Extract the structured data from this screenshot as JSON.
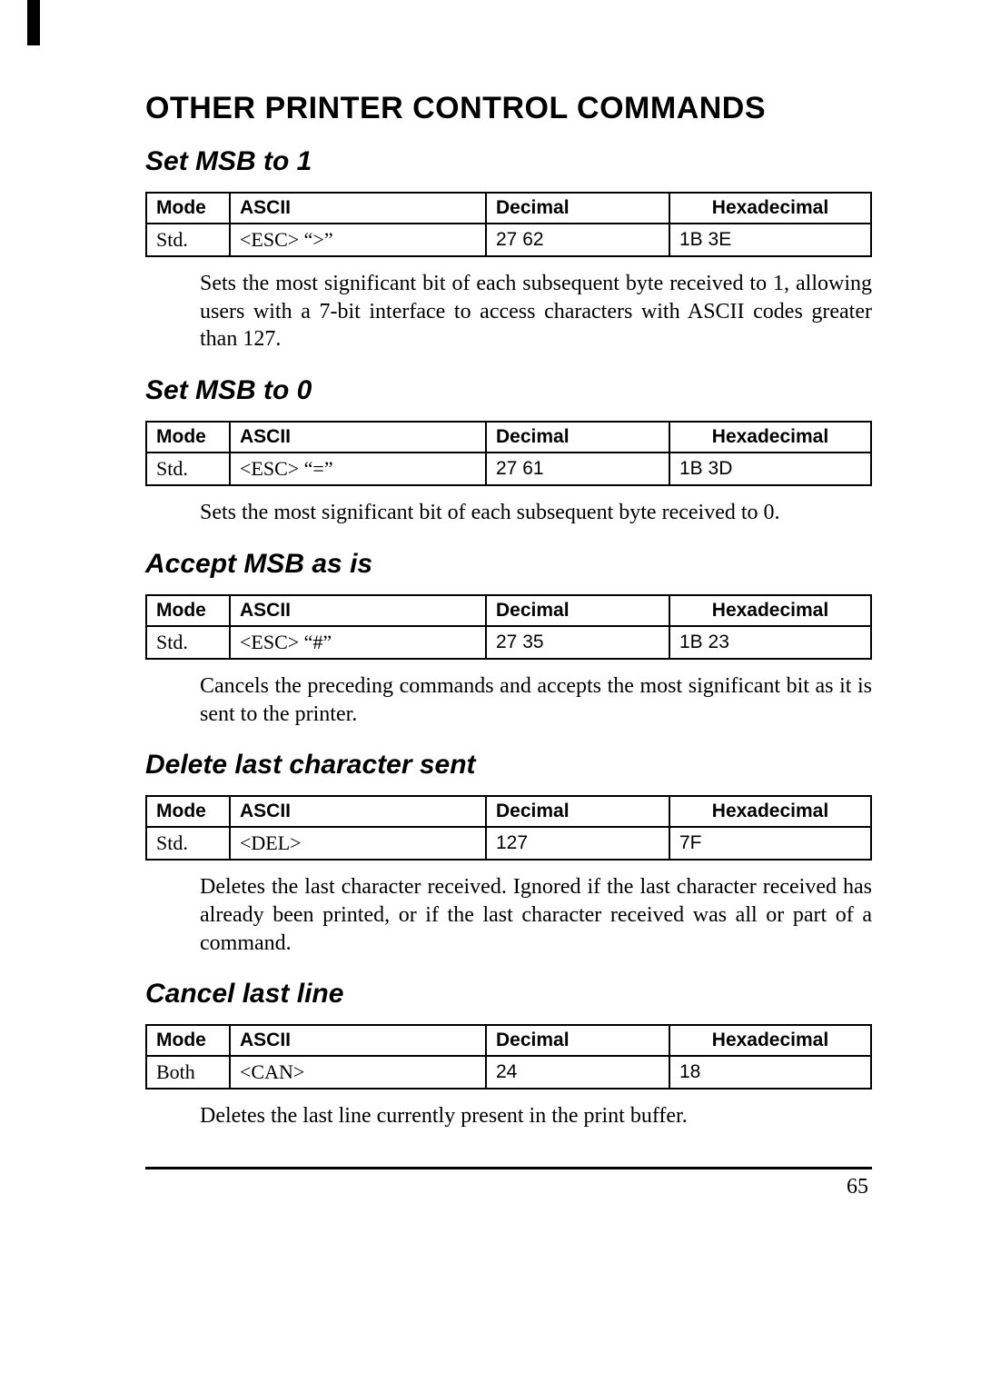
{
  "page": {
    "title": "OTHER PRINTER CONTROL COMMANDS",
    "number": "65"
  },
  "table_headers": {
    "mode": "Mode",
    "ascii": "ASCII",
    "decimal": "Decimal",
    "hex": "Hexadecimal"
  },
  "sections": [
    {
      "heading": "Set MSB to 1",
      "row": {
        "mode": "Std.",
        "ascii": "<ESC>   “>”",
        "decimal": "27   62",
        "hex": "1B   3E"
      },
      "desc": "Sets the most significant bit of each subsequent byte received to 1, allowing users with a 7-bit interface to access characters with ASCII codes greater than 127."
    },
    {
      "heading": "Set MSB to 0",
      "row": {
        "mode": "Std.",
        "ascii": "<ESC>   “=”",
        "decimal": "27   61",
        "hex": "1B   3D"
      },
      "desc": "Sets the most significant bit of each subsequent byte received to 0."
    },
    {
      "heading": "Accept MSB as is",
      "row": {
        "mode": "Std.",
        "ascii": "<ESC>   “#”",
        "decimal": "27   35",
        "hex": "1B   23"
      },
      "desc": "Cancels the preceding commands and accepts the most significant bit as it is sent to the printer."
    },
    {
      "heading": "Delete last character sent",
      "row": {
        "mode": "Std.",
        "ascii": "<DEL>",
        "decimal": "127",
        "hex": "7F"
      },
      "desc": "Deletes the last character received. Ignored if the last character received has already been printed, or if the last character received was all or part of a command."
    },
    {
      "heading": "Cancel last line",
      "row": {
        "mode": "Both",
        "ascii": "<CAN>",
        "decimal": "24",
        "hex": "18"
      },
      "desc": "Deletes the last line currently present in the print buffer."
    }
  ]
}
